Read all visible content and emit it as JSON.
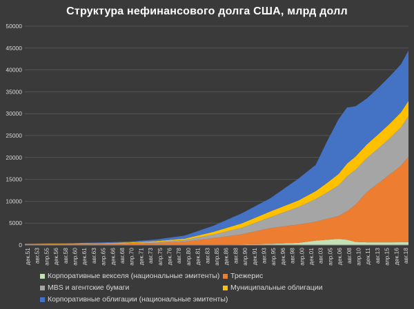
{
  "chart_data": {
    "type": "area",
    "stacked": true,
    "title": "Структура нефинансового долга США, млрд долл",
    "xlabel": "",
    "ylabel": "",
    "ylim": [
      0,
      50000
    ],
    "y_ticks": [
      "0",
      "5000",
      "10000",
      "15000",
      "20000",
      "25000",
      "30000",
      "35000",
      "40000",
      "45000",
      "50000"
    ],
    "x_ticks": [
      "дек.51",
      "авг.53",
      "апр.55",
      "дек.56",
      "авг.58",
      "апр.60",
      "дек.61",
      "авг.63",
      "апр.65",
      "дек.66",
      "авг.68",
      "апр.70",
      "дек.71",
      "авг.73",
      "апр.75",
      "дек.76",
      "авг.78",
      "апр.80",
      "дек.81",
      "авг.83",
      "апр.85",
      "дек.86",
      "авг.88",
      "апр.90",
      "дек.91",
      "авг.93",
      "апр.95",
      "дек.96",
      "авг.98",
      "апр.00",
      "дек.01",
      "авг.03",
      "апр.05",
      "дек.06",
      "авг.08",
      "апр.10",
      "дек.11",
      "авг.13",
      "апр.15",
      "дек.16",
      "авг.18"
    ],
    "x_years": [
      1951.9,
      1955,
      1960,
      1965,
      1970,
      1975,
      1980,
      1985,
      1990,
      1995,
      2000,
      2003,
      2005,
      2007,
      2008.5,
      2010,
      2012,
      2014,
      2016,
      2018,
      2019.3
    ],
    "grid": true,
    "legend_position": "bottom",
    "series": [
      {
        "name": "Корпоративные векселя (национальные эмитенты)",
        "color": "#c5e0b4",
        "values": [
          5,
          6,
          8,
          12,
          20,
          30,
          60,
          80,
          140,
          250,
          500,
          1000,
          1200,
          1400,
          1200,
          700,
          600,
          600,
          600,
          620,
          650
        ]
      },
      {
        "name": "Трежерис",
        "color": "#ed7d31",
        "values": [
          215,
          230,
          240,
          260,
          300,
          450,
          700,
          1500,
          2300,
          3600,
          4200,
          4300,
          4800,
          5200,
          6500,
          8500,
          11500,
          13500,
          15500,
          17500,
          19500
        ]
      },
      {
        "name": "MBS и агентские бумаги",
        "color": "#a5a5a5",
        "values": [
          10,
          20,
          40,
          70,
          100,
          200,
          400,
          800,
          1500,
          2500,
          4000,
          5200,
          6000,
          7000,
          8000,
          8000,
          7800,
          8000,
          8300,
          8800,
          9300
        ]
      },
      {
        "name": "Муниципальные облигации",
        "color": "#ffc000",
        "values": [
          25,
          40,
          70,
          100,
          150,
          220,
          300,
          600,
          1000,
          1300,
          1500,
          1800,
          2200,
          2600,
          2900,
          3000,
          3100,
          3200,
          3300,
          3400,
          3500
        ]
      },
      {
        "name": "Корпоративные облигации (национальные эмитенты)",
        "color": "#4472c4",
        "values": [
          40,
          55,
          80,
          120,
          200,
          350,
          700,
          1400,
          2300,
          3000,
          5000,
          6000,
          9500,
          12500,
          12800,
          11500,
          10500,
          10600,
          10800,
          11000,
          11500
        ]
      }
    ]
  }
}
